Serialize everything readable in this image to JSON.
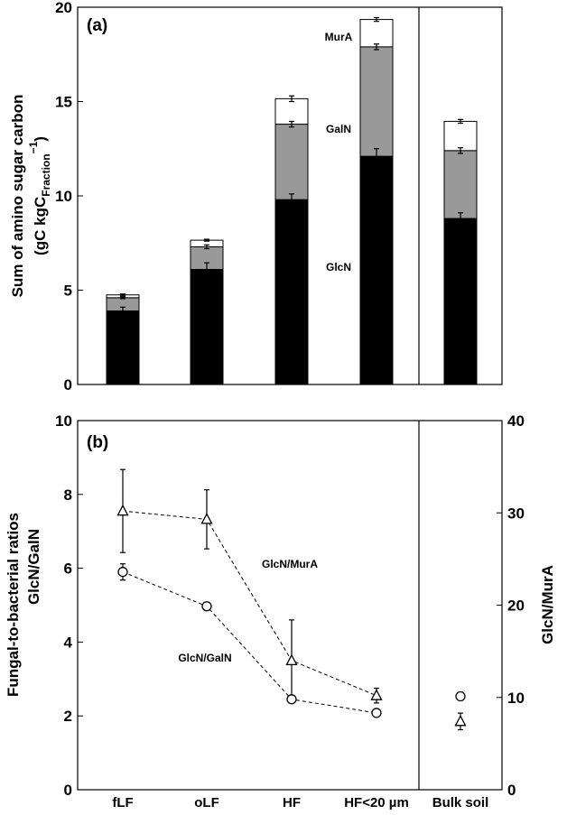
{
  "chart_data": [
    {
      "panel_label": "(a)",
      "type": "bar",
      "stacked": true,
      "ylabel_line1": "Sum of amino sugar carbon",
      "ylabel_line2_prefix": "(gC kgC",
      "ylabel_line2_sub": "Fraction",
      "ylabel_line2_sup": "−1",
      "ylabel_line2_suffix": ")",
      "ylim": [
        0,
        20
      ],
      "yticks": [
        "0",
        "5",
        "10",
        "15",
        "20"
      ],
      "categories": [
        "fLF",
        "oLF",
        "HF",
        "HF<20 µm",
        "Bulk soil"
      ],
      "series": [
        {
          "name": "GlcN",
          "color": "#000000",
          "values": [
            3.9,
            6.1,
            9.8,
            12.1,
            8.8
          ],
          "errors": [
            0.2,
            0.35,
            0.3,
            0.4,
            0.3
          ]
        },
        {
          "name": "GalN",
          "color": "#999999",
          "values": [
            0.7,
            1.2,
            4.0,
            5.8,
            3.6
          ],
          "errors": [
            0.05,
            0.1,
            0.15,
            0.15,
            0.15
          ]
        },
        {
          "name": "MurA",
          "color": "#ffffff",
          "values": [
            0.15,
            0.35,
            1.35,
            1.45,
            1.55
          ],
          "errors": [
            0.05,
            0.05,
            0.15,
            0.1,
            0.1
          ]
        }
      ],
      "annotations": [
        "MurA",
        "GalN",
        "GlcN"
      ]
    },
    {
      "panel_label": "(b)",
      "type": "scatter",
      "ylabel_left_line1": "Fungal-to-bacterial ratios",
      "ylabel_left_line2": "GlcN/GalN",
      "ylabel_right": "GlcN/MurA",
      "ylim_left": [
        0,
        10
      ],
      "ylim_right": [
        0,
        40
      ],
      "yticks_left": [
        "0",
        "2",
        "4",
        "6",
        "8",
        "10"
      ],
      "yticks_right": [
        "0",
        "10",
        "20",
        "30",
        "40"
      ],
      "categories": [
        "fLF",
        "oLF",
        "HF",
        "HF<20 µm",
        "Bulk soil"
      ],
      "series": [
        {
          "name": "GlcN/GalN",
          "marker": "circle",
          "axis": "left",
          "values": [
            5.9,
            4.97,
            2.45,
            2.08,
            2.53
          ],
          "errors": [
            0.22,
            0.1,
            0.0,
            0.0,
            0.0
          ],
          "line_through": [
            0,
            1,
            2,
            3
          ]
        },
        {
          "name": "GlcN/MurA",
          "marker": "triangle",
          "axis": "right",
          "values": [
            30.2,
            29.3,
            14.0,
            10.2,
            7.4
          ],
          "errors": [
            4.5,
            3.2,
            4.4,
            0.8,
            0.9
          ],
          "line_through": [
            0,
            1,
            2,
            3
          ]
        }
      ],
      "annotations": [
        "GlcN/MurA",
        "GlcN/GalN"
      ]
    }
  ]
}
